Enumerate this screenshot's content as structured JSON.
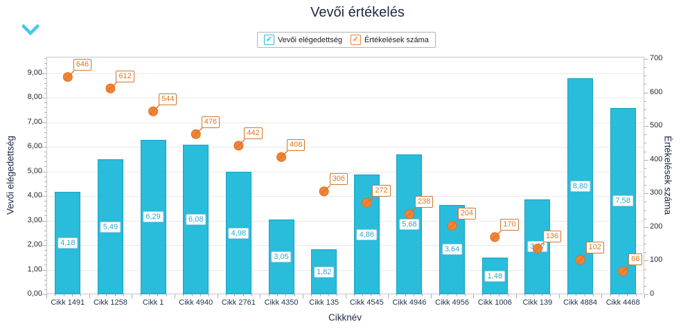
{
  "title": "Vevői értékelés",
  "legend": {
    "items": [
      {
        "label": "Vevői elégedettség",
        "color": "#29bcdb",
        "checked": true,
        "check_glyph": "✓"
      },
      {
        "label": "Értékelések száma",
        "color": "#f08439",
        "checked": true,
        "check_glyph": "✓"
      }
    ]
  },
  "icons": {
    "collapse": "chevron-down-icon",
    "collapse_color": "#3ec9ec"
  },
  "colors": {
    "bar_fill": "#29bcdb",
    "bar_border": "#17a1c2",
    "bar_label_text": "#2aa9cd",
    "point_fill": "#f08439",
    "point_border": "#e1701d",
    "point_label_text": "#e0761f",
    "title_text": "#1d2742",
    "grid": "#e9e9e9",
    "plot_border": "#c5c5c5"
  },
  "chart_data": {
    "type": "bar",
    "title": "Vevői értékelés",
    "xlabel": "Cikknév",
    "categories": [
      "Cikk 1491",
      "Cikk 1258",
      "Cikk 1",
      "Cikk 4940",
      "Cikk 2761",
      "Cikk 4350",
      "Cikk 135",
      "Cikk 4545",
      "Cikk 4946",
      "Cikk 4956",
      "Cikk 1006",
      "Cikk 139",
      "Cikk 4884",
      "Cikk 4468"
    ],
    "series": [
      {
        "name": "Vevői elégedettség",
        "type": "bar",
        "axis": "left",
        "color": "#29bcdb",
        "values": [
          4.18,
          5.49,
          6.29,
          6.08,
          4.98,
          3.05,
          1.82,
          4.86,
          5.68,
          3.64,
          1.48,
          3.87,
          8.8,
          7.58
        ],
        "labels": [
          "4,18",
          "5,49",
          "6,29",
          "6,08",
          "4,98",
          "3,05",
          "1,82",
          "4,86",
          "5,68",
          "3,64",
          "1,48",
          "3,87",
          "8,80",
          "7,58"
        ]
      },
      {
        "name": "Értékelések száma",
        "type": "point",
        "axis": "right",
        "color": "#f08439",
        "values": [
          646,
          612,
          544,
          476,
          442,
          408,
          306,
          272,
          238,
          204,
          170,
          136,
          102,
          68
        ],
        "labels": [
          "646",
          "612",
          "544",
          "476",
          "442",
          "408",
          "306",
          "272",
          "238",
          "204",
          "170",
          "136",
          "102",
          "68"
        ]
      }
    ],
    "left_axis": {
      "title": "Vevői elégedettség",
      "min": 0,
      "max": 9,
      "tick_interval": 1,
      "ticks": [
        "0,00",
        "1,00",
        "2,00",
        "3,00",
        "4,00",
        "5,00",
        "6,00",
        "7,00",
        "8,00",
        "9,00"
      ]
    },
    "right_axis": {
      "title": "Értékelések száma",
      "min": 0,
      "max": 700,
      "tick_interval": 100,
      "ticks": [
        "0",
        "100",
        "200",
        "300",
        "400",
        "500",
        "600",
        "700"
      ]
    },
    "grid": "horizontal",
    "legend_position": "top-center"
  }
}
